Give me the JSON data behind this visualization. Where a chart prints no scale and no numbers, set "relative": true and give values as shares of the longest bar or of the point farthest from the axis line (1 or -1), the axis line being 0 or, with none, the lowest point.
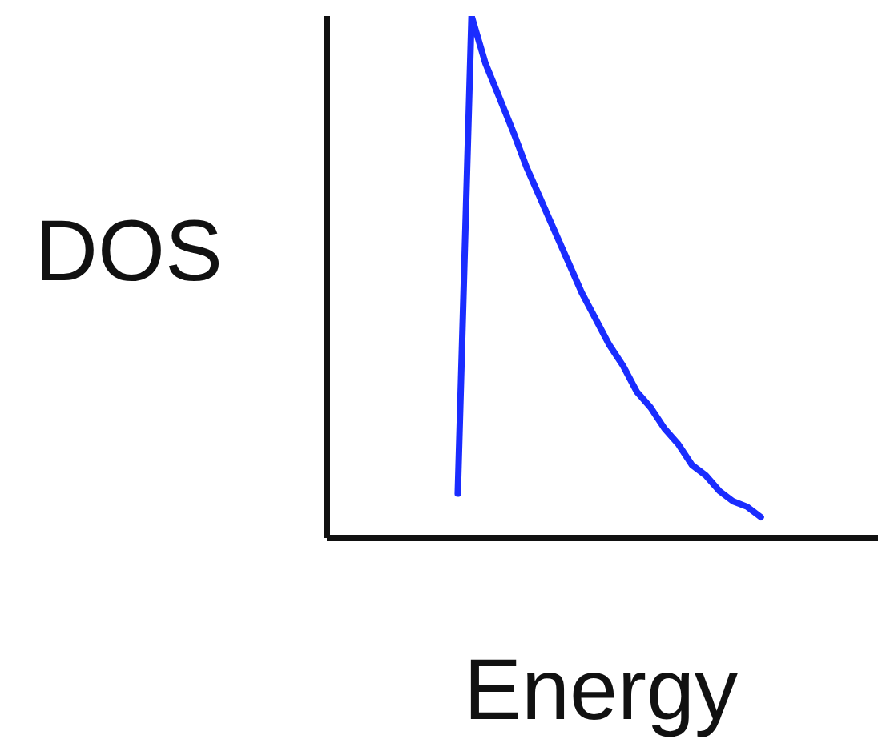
{
  "chart_data": {
    "type": "line",
    "xlabel": "Energy",
    "ylabel": "DOS",
    "relative": true,
    "grid": false,
    "legend": false,
    "marker": "none",
    "line_style": "solid",
    "categories": [
      null,
      null,
      null,
      null,
      null,
      null,
      null,
      null,
      null,
      null,
      null,
      null,
      null,
      null,
      null,
      null,
      null,
      null,
      null,
      null,
      null,
      null,
      null,
      null,
      null,
      null,
      null,
      null,
      null,
      null,
      null,
      null,
      null,
      null,
      null,
      null,
      null,
      null,
      null,
      null
    ],
    "series": [
      {
        "color": "#1a2cff",
        "values": [
          null,
          null,
          null,
          null,
          null,
          null,
          null,
          null,
          null,
          0.085,
          1,
          0.91,
          0.845,
          0.78,
          0.71,
          0.65,
          0.59,
          0.53,
          0.47,
          0.42,
          0.37,
          0.33,
          0.28,
          0.25,
          0.21,
          0.18,
          0.14,
          0.12,
          0.09,
          0.07,
          0.06,
          0.04,
          null,
          null,
          null,
          null,
          null,
          null,
          null,
          null
        ]
      }
    ]
  }
}
